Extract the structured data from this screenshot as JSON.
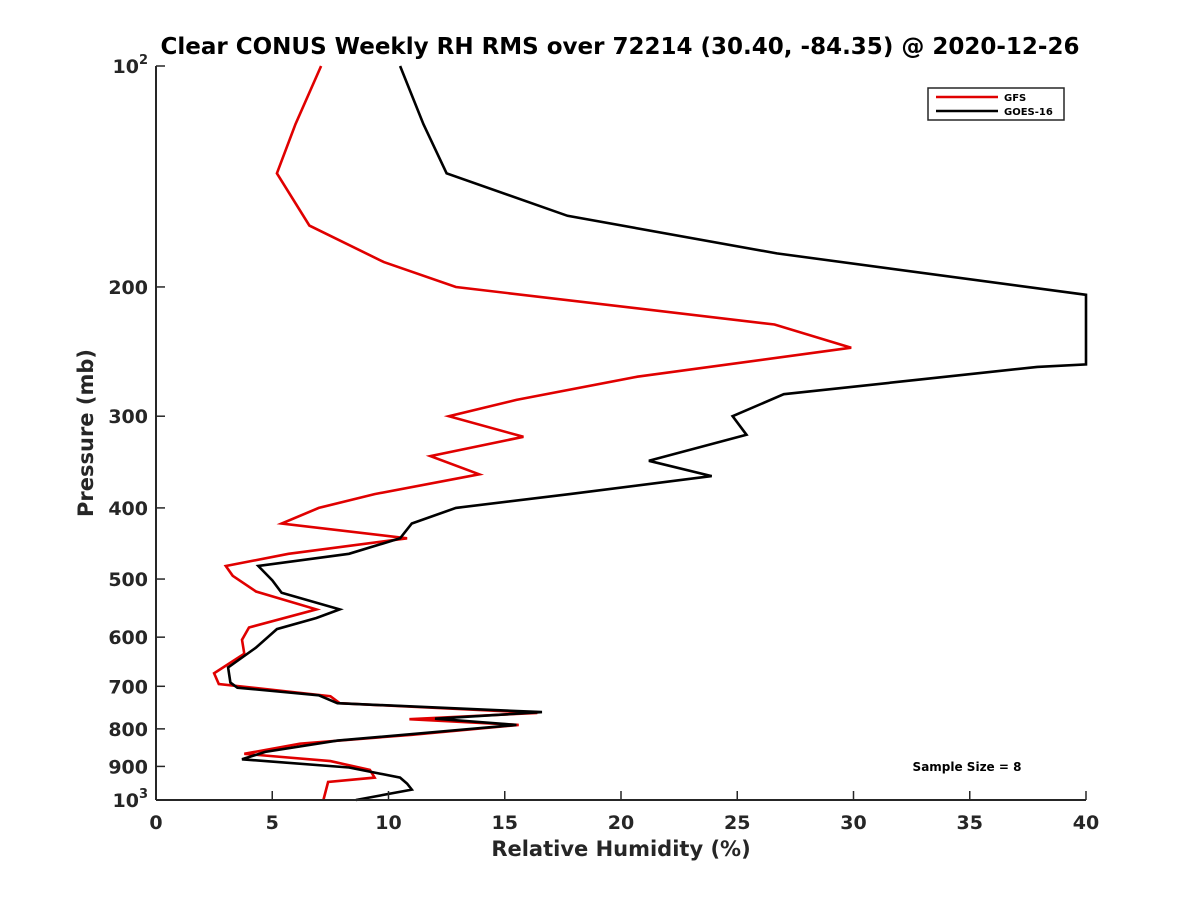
{
  "chart_data": {
    "type": "line",
    "title": "Clear CONUS Weekly RH RMS over 72214 (30.40, -84.35) @ 2020-12-26",
    "xlabel": "Relative Humidity (%)",
    "ylabel": "Pressure (mb)",
    "xlim": [
      0,
      40
    ],
    "ylim": [
      100,
      1000
    ],
    "yscale": "log",
    "yreversed": true,
    "grid": false,
    "x_ticks": [
      "0",
      "5",
      "10",
      "15",
      "20",
      "25",
      "30",
      "35",
      "40"
    ],
    "y_ticks": [
      {
        "value": 100,
        "base": "10",
        "exp": "2"
      },
      {
        "value": 200,
        "base": "200",
        "exp": ""
      },
      {
        "value": 300,
        "base": "300",
        "exp": ""
      },
      {
        "value": 400,
        "base": "400",
        "exp": ""
      },
      {
        "value": 500,
        "base": "500",
        "exp": ""
      },
      {
        "value": 600,
        "base": "600",
        "exp": ""
      },
      {
        "value": 700,
        "base": "700",
        "exp": ""
      },
      {
        "value": 800,
        "base": "800",
        "exp": ""
      },
      {
        "value": 900,
        "base": "900",
        "exp": ""
      },
      {
        "value": 1000,
        "base": "10",
        "exp": "3"
      }
    ],
    "legend": {
      "position": "top-right"
    },
    "annotation": "Sample Size = 8",
    "series": [
      {
        "name": "GFS",
        "color": "#e00000",
        "points": [
          [
            7.1,
            100
          ],
          [
            6.0,
            120
          ],
          [
            5.2,
            140
          ],
          [
            6.6,
            165
          ],
          [
            9.8,
            185
          ],
          [
            12.9,
            200
          ],
          [
            26.6,
            225
          ],
          [
            29.9,
            242
          ],
          [
            20.7,
            265
          ],
          [
            15.5,
            285
          ],
          [
            12.6,
            300
          ],
          [
            15.8,
            320
          ],
          [
            11.8,
            340
          ],
          [
            13.9,
            360
          ],
          [
            9.4,
            383
          ],
          [
            7.0,
            400
          ],
          [
            5.4,
            420
          ],
          [
            10.8,
            440
          ],
          [
            5.7,
            462
          ],
          [
            3.0,
            480
          ],
          [
            3.3,
            495
          ],
          [
            4.3,
            520
          ],
          [
            6.9,
            550
          ],
          [
            4.0,
            582
          ],
          [
            3.7,
            605
          ],
          [
            3.8,
            632
          ],
          [
            2.5,
            672
          ],
          [
            2.7,
            695
          ],
          [
            7.5,
            722
          ],
          [
            7.9,
            738
          ],
          [
            16.4,
            761
          ],
          [
            10.9,
            776
          ],
          [
            15.6,
            790
          ],
          [
            11.0,
            815
          ],
          [
            6.2,
            838
          ],
          [
            3.8,
            865
          ],
          [
            7.5,
            885
          ],
          [
            9.2,
            910
          ],
          [
            9.4,
            932
          ],
          [
            7.4,
            945
          ],
          [
            7.2,
            1000
          ]
        ]
      },
      {
        "name": "GOES-16",
        "color": "#000000",
        "points": [
          [
            10.5,
            100
          ],
          [
            11.5,
            120
          ],
          [
            12.5,
            140
          ],
          [
            17.7,
            160
          ],
          [
            26.7,
            180
          ],
          [
            40.0,
            205
          ],
          [
            40.0,
            255
          ],
          [
            37.9,
            257
          ],
          [
            27.0,
            280
          ],
          [
            24.8,
            300
          ],
          [
            25.4,
            318
          ],
          [
            21.2,
            345
          ],
          [
            23.9,
            362
          ],
          [
            17.8,
            383
          ],
          [
            12.9,
            400
          ],
          [
            11.0,
            420
          ],
          [
            10.5,
            440
          ],
          [
            8.3,
            462
          ],
          [
            4.4,
            480
          ],
          [
            5.0,
            502
          ],
          [
            5.4,
            522
          ],
          [
            7.9,
            550
          ],
          [
            6.9,
            565
          ],
          [
            5.2,
            585
          ],
          [
            4.3,
            620
          ],
          [
            3.1,
            660
          ],
          [
            3.2,
            692
          ],
          [
            3.5,
            703
          ],
          [
            7.0,
            720
          ],
          [
            7.8,
            738
          ],
          [
            16.6,
            759
          ],
          [
            12.0,
            775
          ],
          [
            15.5,
            790
          ],
          [
            7.8,
            830
          ],
          [
            4.7,
            860
          ],
          [
            3.7,
            880
          ],
          [
            8.3,
            903
          ],
          [
            10.5,
            932
          ],
          [
            10.8,
            950
          ],
          [
            11.0,
            968
          ],
          [
            8.6,
            1000
          ]
        ]
      }
    ]
  }
}
